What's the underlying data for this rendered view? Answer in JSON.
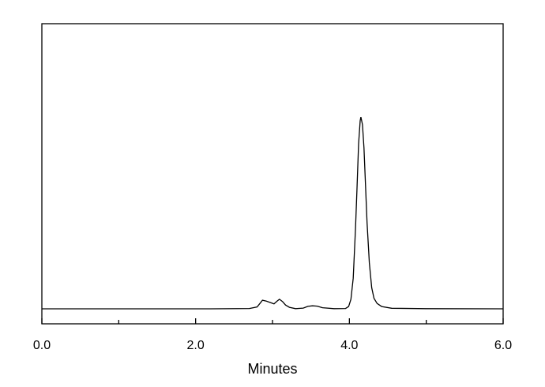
{
  "chart_data": {
    "type": "line",
    "title": "",
    "xlabel": "Minutes",
    "ylabel": "",
    "xlim": [
      0,
      6
    ],
    "ylim": [
      -0.078,
      1.486
    ],
    "x_ticks_major": [
      0,
      2,
      4,
      6
    ],
    "x_tick_labels": [
      "0.0",
      "2.0",
      "4.0",
      "6.0"
    ],
    "x_ticks_minor": [
      1,
      3,
      5
    ],
    "y_ticks": [],
    "grid": false,
    "line_color": "#000000",
    "series": [
      {
        "points": [
          [
            0,
            0
          ],
          [
            2.2,
            0
          ],
          [
            2.7,
            0.002
          ],
          [
            2.8,
            0.01
          ],
          [
            2.84,
            0.03
          ],
          [
            2.87,
            0.045
          ],
          [
            2.92,
            0.04
          ],
          [
            2.97,
            0.033
          ],
          [
            3.02,
            0.026
          ],
          [
            3.06,
            0.04
          ],
          [
            3.09,
            0.05
          ],
          [
            3.13,
            0.038
          ],
          [
            3.17,
            0.02
          ],
          [
            3.22,
            0.008
          ],
          [
            3.3,
            0.001
          ],
          [
            3.4,
            0.004
          ],
          [
            3.46,
            0.013
          ],
          [
            3.52,
            0.016
          ],
          [
            3.58,
            0.014
          ],
          [
            3.65,
            0.006
          ],
          [
            3.8,
            0.001
          ],
          [
            3.95,
            0.002
          ],
          [
            3.99,
            0.012
          ],
          [
            4.02,
            0.05
          ],
          [
            4.05,
            0.16
          ],
          [
            4.08,
            0.42
          ],
          [
            4.1,
            0.64
          ],
          [
            4.12,
            0.86
          ],
          [
            4.14,
            0.98
          ],
          [
            4.15,
            1.0
          ],
          [
            4.17,
            0.96
          ],
          [
            4.19,
            0.84
          ],
          [
            4.21,
            0.64
          ],
          [
            4.23,
            0.45
          ],
          [
            4.26,
            0.24
          ],
          [
            4.29,
            0.11
          ],
          [
            4.32,
            0.055
          ],
          [
            4.36,
            0.028
          ],
          [
            4.42,
            0.012
          ],
          [
            4.55,
            0.003
          ],
          [
            5.0,
            0.001
          ],
          [
            6,
            0
          ]
        ]
      }
    ]
  }
}
